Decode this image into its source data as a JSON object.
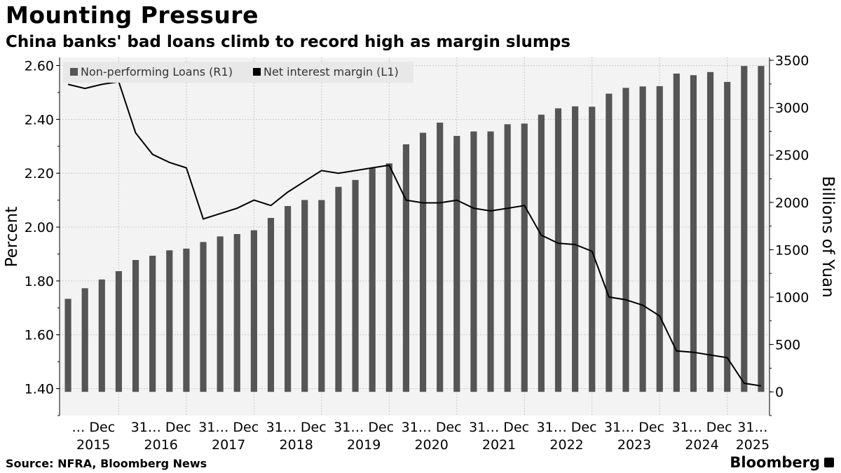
{
  "header": {
    "title": "Mounting Pressure",
    "subtitle": "China banks' bad loans climb to record high as margin slumps"
  },
  "footer": {
    "source": "Source: NFRA, Bloomberg News",
    "brand": "Bloomberg"
  },
  "chart_data": {
    "type": "bar",
    "title": "Mounting Pressure",
    "subtitle": "China banks' bad loans climb to record high as margin slumps",
    "categories": [
      "2015-Q1",
      "2015-Q2",
      "2015-Q3",
      "2015-Q4",
      "2016-Q1",
      "2016-Q2",
      "2016-Q3",
      "2016-Q4",
      "2017-Q1",
      "2017-Q2",
      "2017-Q3",
      "2017-Q4",
      "2018-Q1",
      "2018-Q2",
      "2018-Q3",
      "2018-Q4",
      "2019-Q1",
      "2019-Q2",
      "2019-Q3",
      "2019-Q4",
      "2020-Q1",
      "2020-Q2",
      "2020-Q3",
      "2020-Q4",
      "2021-Q1",
      "2021-Q2",
      "2021-Q3",
      "2021-Q4",
      "2022-Q1",
      "2022-Q2",
      "2022-Q3",
      "2022-Q4",
      "2023-Q1",
      "2023-Q2",
      "2023-Q3",
      "2023-Q4",
      "2024-Q1",
      "2024-Q2",
      "2024-Q3",
      "2024-Q4",
      "2025-Q1",
      "2025-Q2"
    ],
    "series": [
      {
        "name": "Non-performing Loans (R1)",
        "type": "bar",
        "axis": "right",
        "color": "#555555",
        "values": [
          982,
          1094,
          1186,
          1274,
          1392,
          1437,
          1494,
          1512,
          1582,
          1641,
          1666,
          1706,
          1836,
          1962,
          2025,
          2025,
          2164,
          2237,
          2360,
          2412,
          2613,
          2735,
          2842,
          2702,
          2749,
          2749,
          2825,
          2832,
          2926,
          2993,
          3014,
          3010,
          3148,
          3209,
          3224,
          3227,
          3360,
          3343,
          3376,
          3272,
          3440,
          3440
        ]
      },
      {
        "name": "Net interest margin (L1)",
        "type": "line",
        "axis": "left",
        "color": "#000000",
        "values": [
          2.53,
          2.515,
          2.53,
          2.54,
          2.35,
          2.27,
          2.24,
          2.22,
          2.03,
          2.05,
          2.07,
          2.1,
          2.08,
          2.13,
          2.17,
          2.21,
          2.2,
          2.21,
          2.22,
          2.23,
          2.1,
          2.09,
          2.09,
          2.1,
          2.07,
          2.06,
          2.07,
          2.08,
          1.97,
          1.94,
          1.935,
          1.91,
          1.74,
          1.73,
          1.71,
          1.67,
          1.54,
          1.535,
          1.525,
          1.515,
          1.42,
          1.41
        ]
      }
    ],
    "left_axis": {
      "label": "Percent",
      "ylim": [
        1.3,
        2.63
      ],
      "ticks": [
        1.4,
        1.6,
        1.8,
        2.0,
        2.2,
        2.4,
        2.6
      ],
      "tick_labels": [
        "1.40",
        "1.60",
        "1.80",
        "2.00",
        "2.20",
        "2.40",
        "2.60"
      ]
    },
    "right_axis": {
      "label": "Billions of Yuan",
      "ylim": [
        -250,
        3530
      ],
      "ticks": [
        0,
        500,
        1000,
        1500,
        2000,
        2500,
        3000,
        3500
      ],
      "tick_labels": [
        "0",
        "500",
        "1000",
        "1500",
        "2000",
        "2500",
        "3000",
        "3500"
      ]
    },
    "x_axis": {
      "period_labels": [
        "… Dec",
        "31… Dec",
        "31… Dec",
        "31… Dec",
        "31… Dec",
        "31… Dec",
        "31… Dec",
        "31… Dec",
        "31… Dec",
        "31… Dec",
        "31…"
      ],
      "year_labels": [
        "2015",
        "2016",
        "2017",
        "2018",
        "2019",
        "2020",
        "2021",
        "2022",
        "2023",
        "2024",
        "2025"
      ]
    },
    "legend": {
      "position": "top-left",
      "items": [
        "Non-performing Loans (R1)",
        "Net interest margin (L1)"
      ]
    },
    "grid": true
  }
}
